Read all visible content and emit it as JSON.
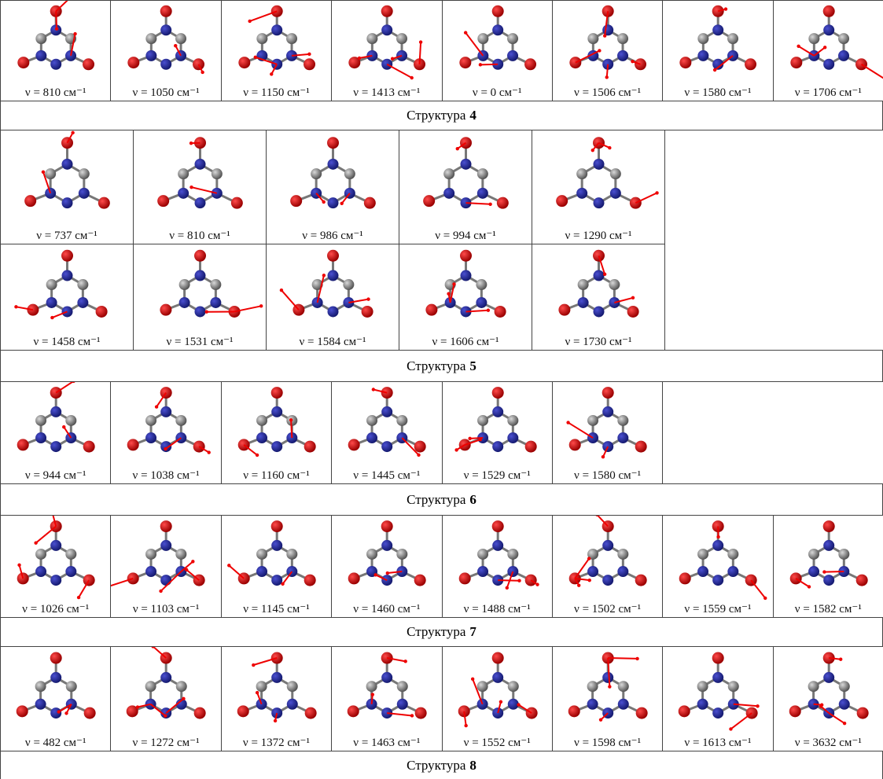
{
  "groups": [
    {
      "rows": [
        [
          "ν = 810 см⁻¹",
          "ν = 1050 см⁻¹",
          "ν = 1150 см⁻¹",
          "ν = 1413 см⁻¹",
          "ν = 0 см⁻¹",
          "ν = 1506 см⁻¹",
          "ν = 1580 см⁻¹",
          "ν = 1706 см⁻¹"
        ]
      ],
      "caption": {
        "text": "Структура",
        "number": "4"
      }
    },
    {
      "rows": [
        [
          "ν = 737 см⁻¹",
          "ν = 810 см⁻¹",
          "ν = 986 см⁻¹",
          "ν = 994 см⁻¹",
          "ν = 1290 см⁻¹"
        ],
        [
          "ν = 1458 см⁻¹",
          "ν = 1531 см⁻¹",
          "ν = 1584 см⁻¹",
          "ν = 1606 см⁻¹",
          "ν = 1730 см⁻¹"
        ]
      ],
      "caption": {
        "text": "Структура",
        "number": "5"
      }
    },
    {
      "rows": [
        [
          "ν = 944 см⁻¹",
          "ν = 1038 см⁻¹",
          "ν = 1160 см⁻¹",
          "ν = 1445 см⁻¹",
          "ν = 1529 см⁻¹",
          "ν = 1580 см⁻¹"
        ]
      ],
      "caption": {
        "text": "Структура",
        "number": "6"
      }
    },
    {
      "rows": [
        [
          "ν = 1026 см⁻¹",
          "ν = 1103 см⁻¹",
          "ν = 1145 см⁻¹",
          "ν = 1460 см⁻¹",
          "ν = 1488 см⁻¹",
          "ν = 1502 см⁻¹",
          "ν = 1559 см⁻¹",
          "ν = 1582 см⁻¹"
        ]
      ],
      "caption": {
        "text": "Структура",
        "number": "7"
      }
    },
    {
      "rows": [
        [
          "ν = 482 см⁻¹",
          "ν = 1272 см⁻¹",
          "ν = 1372 см⁻¹",
          "ν = 1463 см⁻¹",
          "ν = 1552 см⁻¹",
          "ν = 1598 см⁻¹",
          "ν = 1613 см⁻¹",
          "ν = 3632 см⁻¹"
        ]
      ],
      "caption": {
        "text": "Структура",
        "number": "8"
      }
    }
  ]
}
